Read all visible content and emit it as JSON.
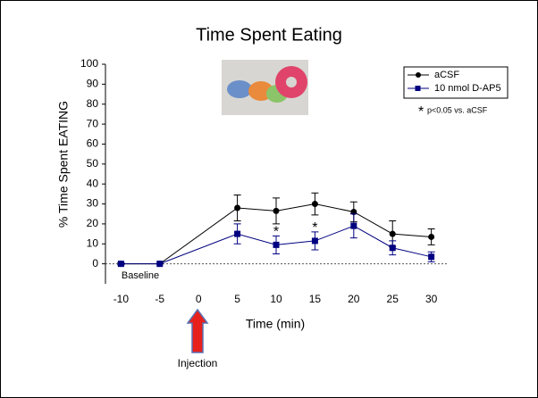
{
  "chart_data": {
    "type": "line",
    "title": "Time Spent Eating",
    "x_label": "Time (min)",
    "y_label": "% Time Spent EATING",
    "x": [
      -10,
      -5,
      5,
      10,
      15,
      20,
      25,
      30
    ],
    "series": [
      {
        "name": "aCSF",
        "color": "#000000",
        "marker": "circle",
        "values": [
          0,
          0,
          28,
          26.5,
          30,
          26,
          15,
          13.5
        ],
        "errors": [
          0.5,
          0,
          6.5,
          6.5,
          5.5,
          5,
          6.5,
          4
        ]
      },
      {
        "name": "10 nmol D-AP5",
        "color": "#000080",
        "marker": "square",
        "values": [
          0,
          0,
          15,
          9.5,
          11.5,
          19,
          8,
          3.5
        ],
        "errors": [
          0.5,
          0,
          5,
          4.5,
          4.5,
          6,
          3.5,
          2.5
        ]
      }
    ],
    "xlim": [
      -12,
      32
    ],
    "xticks": [
      -10,
      -5,
      0,
      5,
      10,
      15,
      20,
      25,
      30
    ],
    "ylim": [
      -10,
      100
    ],
    "yticks": [
      0,
      10,
      20,
      30,
      40,
      50,
      60,
      70,
      80,
      90,
      100
    ],
    "hline": 0,
    "legend": "upper right",
    "significance": [
      {
        "text": "*",
        "x": 10
      },
      {
        "text": "*",
        "x": 15
      }
    ],
    "significance_note": "p<0.05 vs. aCSF",
    "significance_note_marker": "*",
    "annotations": [
      "Baseline",
      "Injection"
    ]
  }
}
